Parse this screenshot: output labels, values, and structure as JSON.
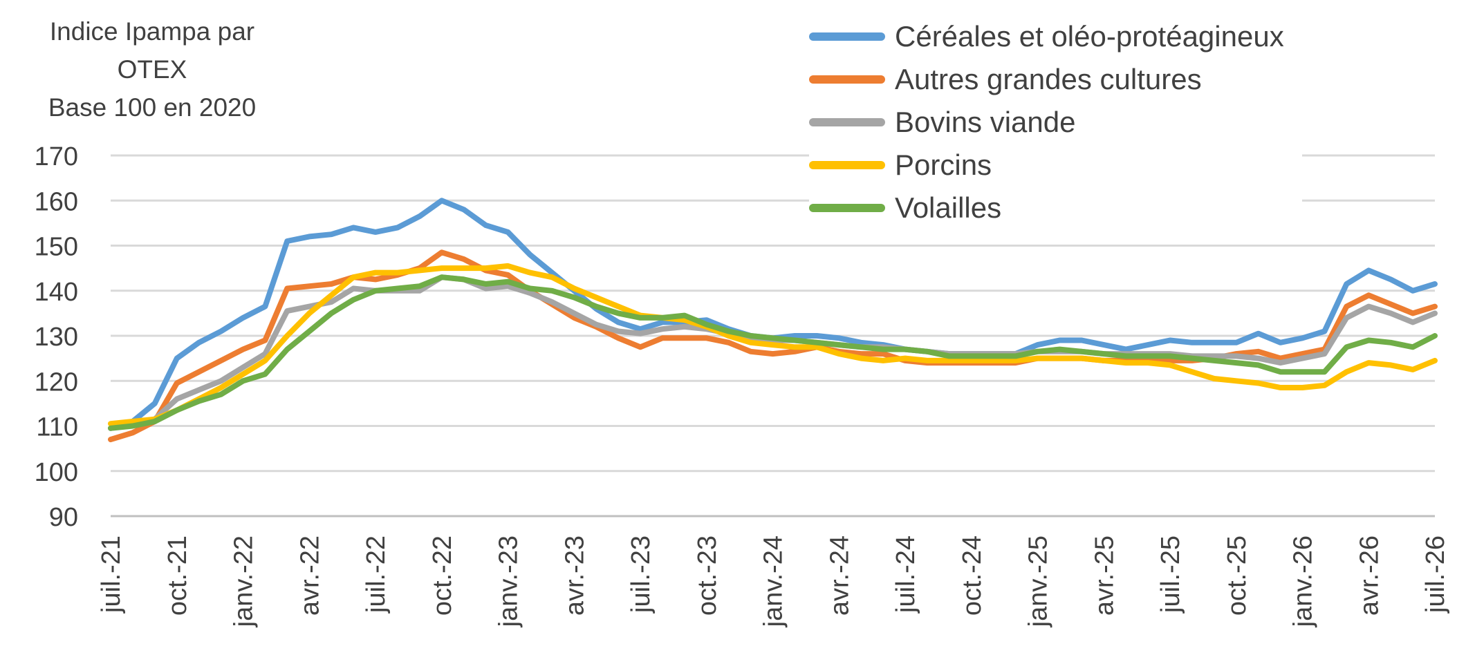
{
  "chart_data": {
    "type": "line",
    "title": "",
    "ylabel_lines": [
      "Indice Ipampa par",
      "OTEX",
      "Base 100 en 2020"
    ],
    "xlabel": "",
    "ylim": [
      90,
      170
    ],
    "yticks": [
      "90",
      "100",
      "110",
      "120",
      "130",
      "140",
      "150",
      "160",
      "170"
    ],
    "grid": true,
    "legend_position": "top-right",
    "x": [
      "juil.-21",
      "août-21",
      "sept.-21",
      "oct.-21",
      "nov.-21",
      "déc.-21",
      "janv.-22",
      "févr.-22",
      "mars-22",
      "avr.-22",
      "mai-22",
      "juin-22",
      "juil.-22",
      "août-22",
      "sept.-22",
      "oct.-22",
      "nov.-22",
      "déc.-22",
      "janv.-23",
      "févr.-23",
      "mars-23",
      "avr.-23",
      "mai-23",
      "juin-23",
      "juil.-23",
      "août-23",
      "sept.-23",
      "oct.-23",
      "nov.-23",
      "déc.-23",
      "janv.-24",
      "févr.-24",
      "mars-24",
      "avr.-24",
      "mai-24",
      "juin-24",
      "juil.-24",
      "août-24",
      "sept.-24",
      "oct.-24",
      "nov.-24",
      "déc.-24",
      "janv.-25",
      "févr.-25",
      "mars-25",
      "avr.-25",
      "mai-25",
      "juin-25",
      "juil.-25",
      "août-25",
      "sept.-25",
      "oct.-25",
      "nov.-25",
      "déc.-25",
      "janv.-26",
      "févr.-26",
      "mars-26",
      "avr.-26",
      "mai-26",
      "juin-26",
      "juil.-26"
    ],
    "xtick_labels": [
      "juil.-21",
      "oct.-21",
      "janv.-22",
      "avr.-22",
      "juil.-22",
      "oct.-22",
      "janv.-23",
      "avr.-23",
      "juil.-23",
      "oct.-23",
      "janv.-24",
      "avr.-24",
      "juil.-24",
      "oct.-24",
      "janv.-25",
      "avr.-25",
      "juil.-25",
      "oct.-25",
      "janv.-26",
      "avr.-26",
      "juil.-26"
    ],
    "series": [
      {
        "name": "Céréales et oléo-protéagineux",
        "color": "#5B9BD5",
        "values": [
          109.5,
          111,
          115,
          125,
          128.5,
          131,
          134,
          136.5,
          151,
          152,
          152.5,
          154,
          153,
          154,
          156.5,
          160,
          158,
          154.5,
          153,
          148,
          144,
          140,
          136,
          133,
          131.5,
          133,
          133,
          133.5,
          131.5,
          130,
          129.5,
          130,
          130,
          129.5,
          128.5,
          128,
          127,
          126.5,
          126,
          126,
          126,
          126,
          128,
          129,
          129,
          128,
          127,
          128,
          129,
          128.5,
          128.5,
          128.5,
          130.5,
          128.5,
          129.5,
          131,
          141.5,
          144.5,
          142.5,
          140,
          141.5
        ]
      },
      {
        "name": "Autres grandes cultures",
        "color": "#ED7D31",
        "values": [
          107,
          108.5,
          111,
          119.5,
          122,
          124.5,
          127,
          129,
          140.5,
          141,
          141.5,
          143,
          142.5,
          143.5,
          145,
          148.5,
          147,
          144.5,
          143.5,
          140,
          137,
          134,
          132,
          129.5,
          127.5,
          129.5,
          129.5,
          129.5,
          128.5,
          126.5,
          126,
          126.5,
          127.5,
          126.5,
          126,
          126,
          124.5,
          124,
          124,
          124,
          124,
          124,
          125,
          125,
          125,
          124.5,
          124.5,
          124.5,
          124.5,
          124.5,
          125,
          126,
          126.5,
          125,
          126,
          127,
          136.5,
          139,
          137,
          135,
          136.5
        ]
      },
      {
        "name": "Bovins viande",
        "color": "#A5A5A5",
        "values": [
          109.5,
          110.5,
          111.5,
          116,
          118,
          120,
          123,
          126,
          135.5,
          136.5,
          137.5,
          140.5,
          140,
          140,
          140,
          143,
          142.5,
          140.5,
          141,
          139.5,
          137.5,
          135,
          132.5,
          131,
          130.5,
          131.5,
          132,
          131.5,
          130.5,
          129.5,
          129,
          129,
          128.5,
          128,
          127.5,
          127.5,
          127,
          126.5,
          126,
          126,
          126,
          126,
          126.5,
          126.5,
          126.5,
          126,
          126,
          126,
          126,
          125.5,
          125.5,
          125.5,
          125,
          124,
          125,
          126,
          134,
          136.5,
          135,
          133,
          135
        ]
      },
      {
        "name": "Porcins",
        "color": "#FFC000",
        "values": [
          110.5,
          111,
          111.5,
          113.5,
          116,
          118.5,
          121.5,
          124.5,
          130,
          135,
          139,
          143,
          144,
          144,
          144.5,
          145,
          145,
          145,
          145.5,
          144,
          143,
          140.5,
          138.5,
          136.5,
          134.5,
          134,
          133.5,
          132,
          130,
          128.5,
          128,
          127.5,
          127.5,
          126,
          125,
          124.5,
          125,
          124.5,
          124.5,
          124.5,
          124.5,
          124.5,
          125,
          125,
          125,
          124.5,
          124,
          124,
          123.5,
          122,
          120.5,
          120,
          119.5,
          118.5,
          118.5,
          119,
          122,
          124,
          123.5,
          122.5,
          124.5
        ]
      },
      {
        "name": "Volailles",
        "color": "#70AD47",
        "values": [
          109.5,
          110,
          111,
          113.5,
          115.5,
          117,
          120,
          121.5,
          127,
          131,
          135,
          138,
          140,
          140.5,
          141,
          143,
          142.5,
          141.5,
          142,
          140.5,
          140,
          138.5,
          136.5,
          135,
          134,
          134,
          134.5,
          132.5,
          131,
          130,
          129.5,
          129,
          128.5,
          128,
          127.5,
          127,
          127,
          126.5,
          125.5,
          125.5,
          125.5,
          125.5,
          126.5,
          127,
          126.5,
          126,
          125.5,
          125.5,
          125.5,
          125,
          124.5,
          124,
          123.5,
          122,
          122,
          122,
          127.5,
          129,
          128.5,
          127.5,
          130
        ]
      }
    ]
  }
}
